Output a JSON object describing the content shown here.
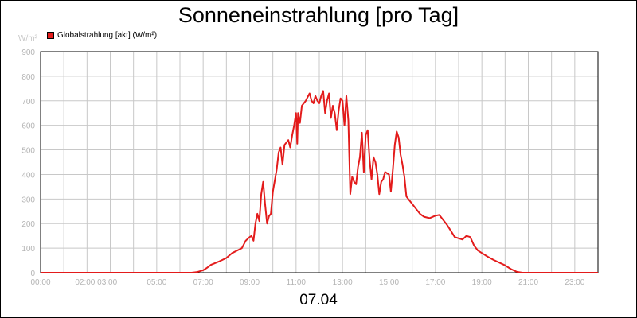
{
  "chart_data": {
    "type": "line",
    "title": "Sonneneinstrahlung [pro Tag]",
    "xlabel": "07.04",
    "ylabel": "W/m²",
    "unit": "W/m²",
    "ylim": [
      0,
      900
    ],
    "xlim": [
      "00:00",
      "24:00"
    ],
    "grid": true,
    "legend_position": "top-left",
    "y_ticks": [
      "0",
      "100",
      "200",
      "300",
      "400",
      "500",
      "600",
      "700",
      "800",
      "900"
    ],
    "x_tick_labels": [
      "00:00",
      "02:00 03:00",
      "05:00",
      "07:00",
      "09:00",
      "11:00",
      "13:00",
      "15:00",
      "17:00",
      "19:00",
      "21:00",
      "23:00"
    ],
    "series": [
      {
        "name": "Globalstrahlung [akt] (W/m²)",
        "color": "#e31b1b",
        "points": [
          [
            "00:00",
            0
          ],
          [
            "06:30",
            0
          ],
          [
            "06:45",
            3
          ],
          [
            "07:00",
            10
          ],
          [
            "07:10",
            20
          ],
          [
            "07:20",
            32
          ],
          [
            "07:40",
            45
          ],
          [
            "08:00",
            60
          ],
          [
            "08:15",
            80
          ],
          [
            "08:30",
            92
          ],
          [
            "08:40",
            100
          ],
          [
            "08:50",
            130
          ],
          [
            "09:00",
            145
          ],
          [
            "09:05",
            150
          ],
          [
            "09:10",
            130
          ],
          [
            "09:15",
            200
          ],
          [
            "09:20",
            240
          ],
          [
            "09:25",
            210
          ],
          [
            "09:30",
            320
          ],
          [
            "09:35",
            370
          ],
          [
            "09:40",
            280
          ],
          [
            "09:45",
            200
          ],
          [
            "09:50",
            230
          ],
          [
            "09:55",
            240
          ],
          [
            "10:00",
            330
          ],
          [
            "10:10",
            420
          ],
          [
            "10:15",
            490
          ],
          [
            "10:20",
            510
          ],
          [
            "10:25",
            440
          ],
          [
            "10:30",
            520
          ],
          [
            "10:40",
            540
          ],
          [
            "10:45",
            510
          ],
          [
            "10:50",
            560
          ],
          [
            "10:55",
            600
          ],
          [
            "11:00",
            650
          ],
          [
            "11:03",
            525
          ],
          [
            "11:05",
            650
          ],
          [
            "11:10",
            610
          ],
          [
            "11:15",
            680
          ],
          [
            "11:20",
            690
          ],
          [
            "11:25",
            700
          ],
          [
            "11:30",
            715
          ],
          [
            "11:35",
            730
          ],
          [
            "11:40",
            700
          ],
          [
            "11:45",
            690
          ],
          [
            "11:50",
            720
          ],
          [
            "11:55",
            700
          ],
          [
            "12:00",
            690
          ],
          [
            "12:05",
            720
          ],
          [
            "12:10",
            740
          ],
          [
            "12:15",
            650
          ],
          [
            "12:20",
            700
          ],
          [
            "12:25",
            730
          ],
          [
            "12:30",
            630
          ],
          [
            "12:35",
            680
          ],
          [
            "12:40",
            650
          ],
          [
            "12:45",
            580
          ],
          [
            "12:50",
            660
          ],
          [
            "12:55",
            710
          ],
          [
            "13:00",
            700
          ],
          [
            "13:05",
            600
          ],
          [
            "13:10",
            720
          ],
          [
            "13:15",
            620
          ],
          [
            "13:20",
            320
          ],
          [
            "13:25",
            390
          ],
          [
            "13:30",
            370
          ],
          [
            "13:35",
            360
          ],
          [
            "13:40",
            430
          ],
          [
            "13:45",
            470
          ],
          [
            "13:50",
            570
          ],
          [
            "13:55",
            410
          ],
          [
            "14:00",
            560
          ],
          [
            "14:05",
            580
          ],
          [
            "14:10",
            460
          ],
          [
            "14:15",
            380
          ],
          [
            "14:20",
            470
          ],
          [
            "14:25",
            450
          ],
          [
            "14:30",
            400
          ],
          [
            "14:35",
            320
          ],
          [
            "14:40",
            370
          ],
          [
            "14:45",
            380
          ],
          [
            "14:50",
            410
          ],
          [
            "15:00",
            400
          ],
          [
            "15:05",
            330
          ],
          [
            "15:10",
            420
          ],
          [
            "15:15",
            520
          ],
          [
            "15:20",
            575
          ],
          [
            "15:25",
            550
          ],
          [
            "15:30",
            480
          ],
          [
            "15:35",
            440
          ],
          [
            "15:40",
            390
          ],
          [
            "15:45",
            310
          ],
          [
            "15:50",
            300
          ],
          [
            "16:00",
            280
          ],
          [
            "16:10",
            260
          ],
          [
            "16:20",
            240
          ],
          [
            "16:30",
            228
          ],
          [
            "16:45",
            222
          ],
          [
            "17:00",
            232
          ],
          [
            "17:10",
            235
          ],
          [
            "17:20",
            215
          ],
          [
            "17:30",
            195
          ],
          [
            "17:40",
            170
          ],
          [
            "17:50",
            145
          ],
          [
            "18:00",
            140
          ],
          [
            "18:10",
            135
          ],
          [
            "18:20",
            150
          ],
          [
            "18:30",
            145
          ],
          [
            "18:40",
            110
          ],
          [
            "18:50",
            90
          ],
          [
            "19:00",
            80
          ],
          [
            "19:15",
            65
          ],
          [
            "19:30",
            52
          ],
          [
            "19:40",
            45
          ],
          [
            "20:00",
            30
          ],
          [
            "20:15",
            15
          ],
          [
            "20:30",
            4
          ],
          [
            "20:45",
            0
          ],
          [
            "24:00",
            0
          ]
        ]
      }
    ]
  }
}
